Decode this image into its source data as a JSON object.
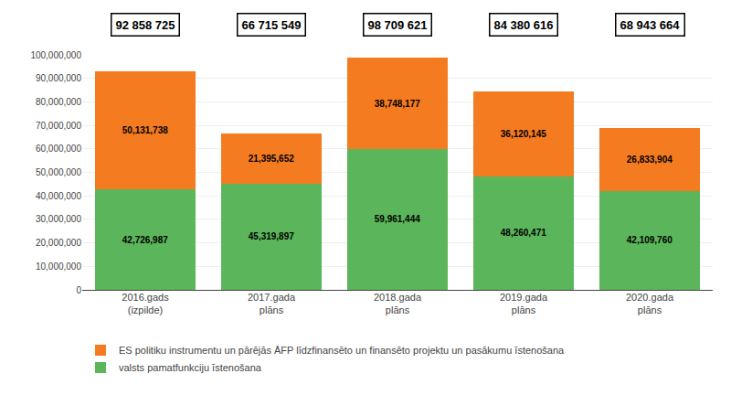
{
  "chart_data": {
    "type": "bar",
    "stacked": true,
    "categories": [
      "2016.gads\n(izpilde)",
      "2017.gada\nplāns",
      "2018.gada\nplāns",
      "2019.gada\nplāns",
      "2020.gada\nplāns"
    ],
    "series": [
      {
        "name": "valsts pamatfunkciju īstenošana",
        "color": "#5BB55A",
        "values": [
          42726987,
          45319897,
          59961444,
          48260471,
          42109760
        ],
        "value_labels": [
          "42,726,987",
          "45,319,897",
          "59,961,444",
          "48,260,471",
          "42,109,760"
        ]
      },
      {
        "name": "ES politiku instrumentu un pārējās ĀFP līdzfinansēto un finansēto projektu un pasākumu īstenošana",
        "color": "#F47B20",
        "values": [
          50131738,
          21395652,
          38748177,
          36120145,
          26833904
        ],
        "value_labels": [
          "50,131,738",
          "21,395,652",
          "38,748,177",
          "36,120,145",
          "26,833,904"
        ]
      }
    ],
    "totals": {
      "values": [
        92858725,
        66715549,
        98709621,
        84380616,
        68943664
      ],
      "value_labels": [
        "92 858 725",
        "66 715 549",
        "98 709 621",
        "84 380 616",
        "68 943 664"
      ]
    },
    "data_labels": true,
    "legend": "bottom left",
    "ylim": [
      0,
      100000000
    ],
    "yticks": [
      0,
      {
        "value": 10000000,
        "label": "10,000,000"
      },
      {
        "value": 20000000,
        "label": "20,000,000"
      },
      {
        "value": 30000000,
        "label": "30,000,000"
      },
      {
        "value": 40000000,
        "label": "40,000,000"
      },
      {
        "value": 50000000,
        "label": "50,000,000"
      },
      {
        "value": 60000000,
        "label": "60,000,000"
      },
      {
        "value": 70000000,
        "label": "70,000,000"
      },
      {
        "value": 80000000,
        "label": "80,000,000"
      },
      {
        "value": 90000000,
        "label": "90,000,000"
      },
      {
        "value": 100000000,
        "label": "100,000,000"
      }
    ],
    "grid": true
  }
}
